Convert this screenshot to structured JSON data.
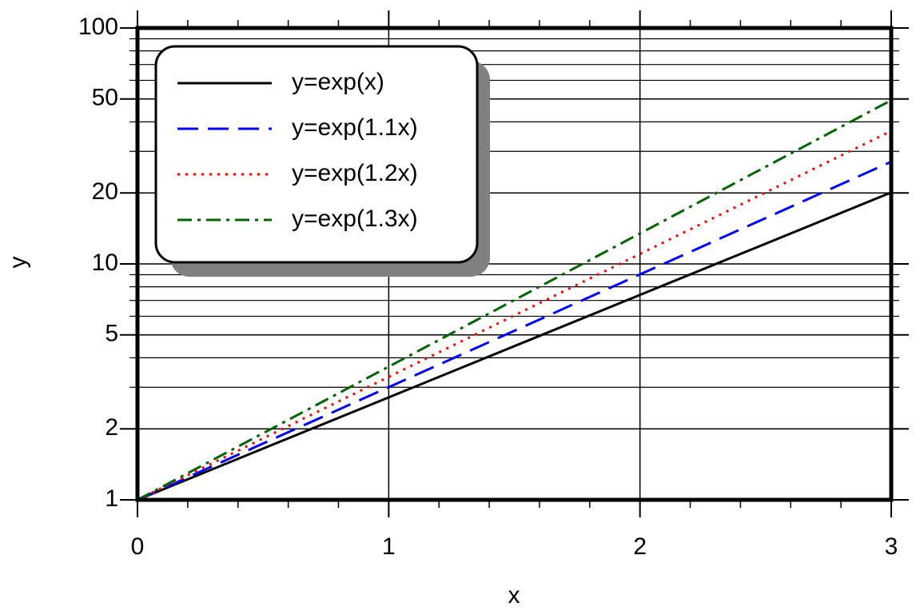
{
  "chart_data": {
    "type": "line",
    "x_label": "x",
    "y_label": "y",
    "log_y": true,
    "grid": true,
    "x": [
      0,
      0.5,
      1,
      1.5,
      2,
      2.5,
      3
    ],
    "series": [
      {
        "name": "y=exp(x)",
        "color": "#000000",
        "dash": "solid",
        "values": [
          1,
          1.649,
          2.718,
          4.482,
          7.389,
          12.18,
          20.09
        ]
      },
      {
        "name": "y=exp(1.1x)",
        "color": "#0000ff",
        "dash": "dashed",
        "values": [
          1,
          1.733,
          3.004,
          5.207,
          9.025,
          15.64,
          27.11
        ]
      },
      {
        "name": "y=exp(1.2x)",
        "color": "#ff0000",
        "dash": "dotted",
        "values": [
          1,
          1.822,
          3.32,
          6.05,
          11.02,
          20.09,
          36.6
        ]
      },
      {
        "name": "y=exp(1.3x)",
        "color": "#006400",
        "dash": "dashdot",
        "values": [
          1,
          1.916,
          3.669,
          7.029,
          13.46,
          25.79,
          49.4
        ]
      }
    ],
    "xlim": [
      0,
      3
    ],
    "xticks": [
      0,
      1,
      2,
      3
    ],
    "x_minor_ticks": [
      0.2,
      0.4,
      0.6,
      0.8,
      1.2,
      1.4,
      1.6,
      1.8,
      2.2,
      2.4,
      2.6,
      2.8
    ],
    "ylim": [
      1,
      100
    ],
    "yticks": [
      1,
      2,
      5,
      10,
      20,
      50,
      100
    ],
    "y_minor_ticks": [
      3,
      4,
      6,
      7,
      8,
      9,
      30,
      40,
      60,
      70,
      80,
      90
    ],
    "legend": "upper left"
  }
}
